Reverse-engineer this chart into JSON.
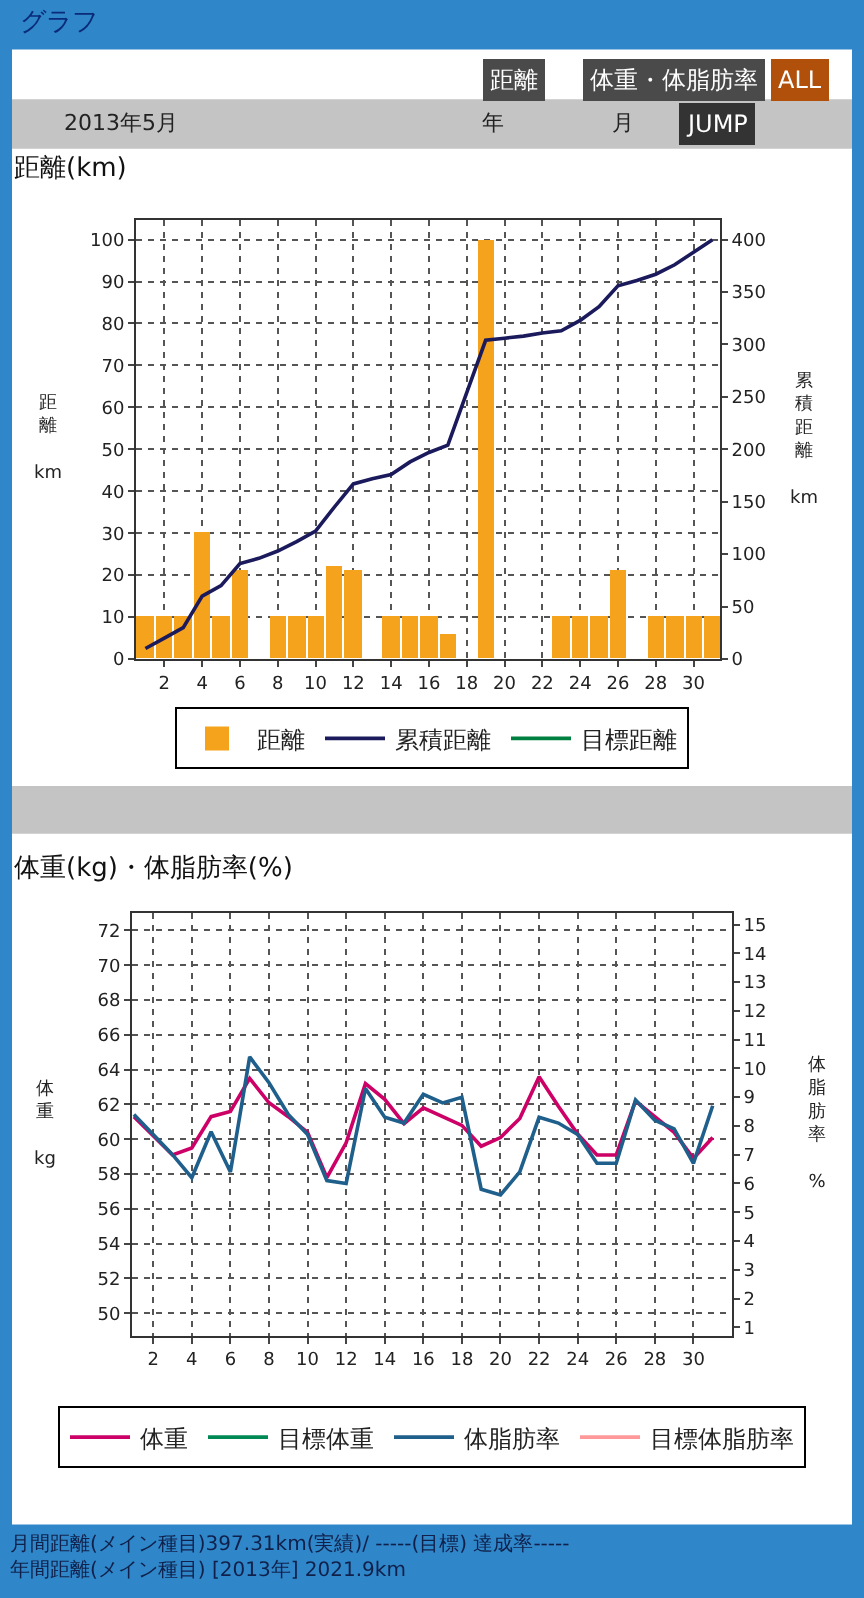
{
  "chart_data": [
    {
      "type": "bar",
      "title": "距離(km)",
      "ylabel": "距離 km",
      "y2label": "累積距離 km",
      "annotations": [
        "グラフ",
        "距離",
        "体重・体脂肪率",
        "ALL",
        "2013年5月",
        "年",
        "月",
        "JUMP"
      ],
      "x": [
        1,
        2,
        3,
        4,
        5,
        6,
        7,
        8,
        9,
        10,
        11,
        12,
        13,
        14,
        15,
        16,
        17,
        18,
        19,
        20,
        21,
        22,
        23,
        24,
        25,
        26,
        27,
        28,
        29,
        30,
        31
      ],
      "series": [
        {
          "name": "距離",
          "type": "bar",
          "color": "#f5a21c",
          "values": [
            10,
            10,
            10,
            30,
            10,
            21,
            null,
            10,
            10,
            10,
            22,
            21,
            null,
            10,
            10,
            10,
            6,
            null,
            100,
            null,
            null,
            null,
            10,
            10,
            10,
            21,
            null,
            10,
            10,
            10,
            10
          ]
        },
        {
          "name": "累積距離",
          "type": "line",
          "axis": "y2",
          "color": "#1a1a5c",
          "values": [
            10,
            20,
            30,
            60,
            70,
            91,
            96,
            103,
            112,
            122,
            145,
            167,
            172,
            176,
            188,
            197,
            204,
            254,
            304,
            306,
            308,
            311,
            313,
            323,
            336,
            356,
            361,
            367,
            376,
            388,
            400
          ]
        },
        {
          "name": "目標距離",
          "type": "line",
          "axis": "y2",
          "color": "#008040",
          "values": [
            null,
            null,
            null,
            null,
            null,
            null,
            null,
            null,
            null,
            null,
            null,
            null,
            null,
            null,
            null,
            null,
            null,
            null,
            null,
            null,
            null,
            null,
            null,
            null,
            null,
            null,
            null,
            null,
            null,
            null,
            null
          ]
        }
      ],
      "xlim": [
        0.5,
        31.4
      ],
      "xticks": [
        2,
        4,
        6,
        8,
        10,
        12,
        14,
        16,
        18,
        20,
        22,
        24,
        26,
        28,
        30
      ],
      "ylim": [
        0,
        104.6
      ],
      "yticks": [
        0,
        10,
        20,
        30,
        40,
        50,
        60,
        70,
        80,
        90,
        100
      ],
      "y2lim": [
        0,
        418.4
      ],
      "y2ticks": [
        0,
        50,
        100,
        150,
        200,
        250,
        300,
        350,
        400
      ],
      "grid": true,
      "legend": "bottom"
    },
    {
      "type": "line",
      "title": "体重(kg)・体脂肪率(%)",
      "ylabel": "体重 kg",
      "y2label": "体脂肪率 %",
      "annotations": [
        "月間距離(メイン種目)397.31km(実績)/ -----(目標) 達成率-----",
        "年間距離(メイン種目) [2013年] 2021.9km"
      ],
      "x": [
        1,
        2,
        3,
        4,
        5,
        6,
        7,
        8,
        9,
        10,
        11,
        12,
        13,
        14,
        15,
        16,
        17,
        18,
        19,
        20,
        21,
        22,
        23,
        24,
        25,
        26,
        27,
        28,
        29,
        30,
        31
      ],
      "series": [
        {
          "name": "体重",
          "color": "#cc0066",
          "values": [
            61.3,
            60.2,
            59.1,
            59.5,
            61.3,
            61.6,
            63.5,
            62.1,
            61.3,
            60.4,
            57.8,
            59.8,
            63.2,
            62.3,
            60.9,
            61.8,
            61.3,
            60.8,
            59.6,
            60.1,
            61.2,
            63.6,
            61.9,
            60.3,
            59.1,
            59.1,
            62.2,
            61.3,
            60.4,
            58.9,
            60.1
          ]
        },
        {
          "name": "目標体重",
          "color": "#008855",
          "values": [
            null,
            null,
            null,
            null,
            null,
            null,
            null,
            null,
            null,
            null,
            null,
            null,
            null,
            null,
            null,
            null,
            null,
            null,
            null,
            null,
            null,
            null,
            null,
            null,
            null,
            null,
            null,
            null,
            null,
            null,
            null
          ]
        },
        {
          "name": "体脂肪率",
          "axis": "y2",
          "color": "#1f5f8b",
          "values": [
            8.4,
            7.7,
            7.0,
            6.2,
            7.8,
            6.4,
            10.4,
            9.5,
            8.4,
            7.7,
            6.1,
            6.0,
            9.3,
            8.3,
            8.1,
            9.1,
            8.8,
            9.0,
            5.8,
            5.6,
            6.4,
            8.3,
            8.1,
            7.7,
            6.7,
            6.7,
            8.9,
            8.2,
            7.9,
            6.7,
            8.7
          ]
        },
        {
          "name": "目標体脂肪率",
          "axis": "y2",
          "color": "#ff9999",
          "values": [
            null,
            null,
            null,
            null,
            null,
            null,
            null,
            null,
            null,
            null,
            null,
            null,
            null,
            null,
            null,
            null,
            null,
            null,
            null,
            null,
            null,
            null,
            null,
            null,
            null,
            null,
            null,
            null,
            null,
            null,
            null
          ]
        }
      ],
      "xlim": [
        0.9,
        32
      ],
      "xticks": [
        2,
        4,
        6,
        8,
        10,
        12,
        14,
        16,
        18,
        20,
        22,
        24,
        26,
        28,
        30
      ],
      "ylim": [
        48.7,
        73
      ],
      "yticks": [
        50,
        52,
        54,
        56,
        58,
        60,
        62,
        64,
        66,
        68,
        70,
        72
      ],
      "y2lim": [
        0.7,
        15.4
      ],
      "y2ticks": [
        1,
        2,
        3,
        4,
        5,
        6,
        7,
        8,
        9,
        10,
        11,
        12,
        13,
        14,
        15
      ],
      "grid": true,
      "legend": "bottom"
    }
  ]
}
